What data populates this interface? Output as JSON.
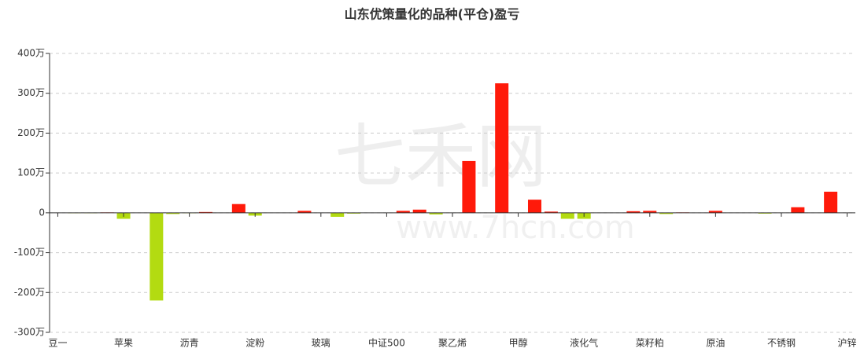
{
  "chart_data": {
    "type": "bar",
    "title": "山东优策量化的品种(平仓)盈亏",
    "watermark": [
      "七禾网",
      "www.7hcn.com"
    ],
    "categories": [
      "豆一",
      null,
      null,
      null,
      "苹果",
      null,
      null,
      null,
      "沥青",
      null,
      null,
      null,
      "淀粉",
      null,
      null,
      null,
      "玻璃",
      null,
      null,
      null,
      "中证500",
      null,
      null,
      null,
      "聚乙烯",
      null,
      null,
      null,
      "甲醇",
      null,
      null,
      null,
      "液化气",
      null,
      null,
      null,
      "菜籽粕",
      null,
      null,
      null,
      "原油",
      null,
      null,
      null,
      "不锈钢",
      null,
      null,
      null,
      "沪锌"
    ],
    "values": [
      0,
      -1,
      -1,
      1,
      -15,
      0,
      -220,
      -3,
      -1,
      2,
      0,
      22,
      -7,
      0,
      0,
      5,
      0,
      -10,
      -2,
      0,
      0,
      5,
      8,
      -4,
      0,
      130,
      0,
      325,
      0,
      33,
      3,
      -15,
      -15,
      0,
      0,
      4,
      5,
      -3,
      1,
      0,
      5,
      0,
      0,
      -2,
      0,
      14,
      0,
      53,
      0
    ],
    "positive_color": "#ff1a0a",
    "negative_color": "#b3db11",
    "ylim": [
      -300,
      400
    ],
    "yticks": [
      {
        "value": -300,
        "label": "-300万"
      },
      {
        "value": -200,
        "label": "-200万"
      },
      {
        "value": -100,
        "label": "-100万"
      },
      0,
      {
        "value": 100,
        "label": "100万"
      },
      {
        "value": 200,
        "label": "200万"
      },
      {
        "value": 300,
        "label": "300万"
      },
      {
        "value": 400,
        "label": "400万"
      }
    ],
    "grid": true
  }
}
